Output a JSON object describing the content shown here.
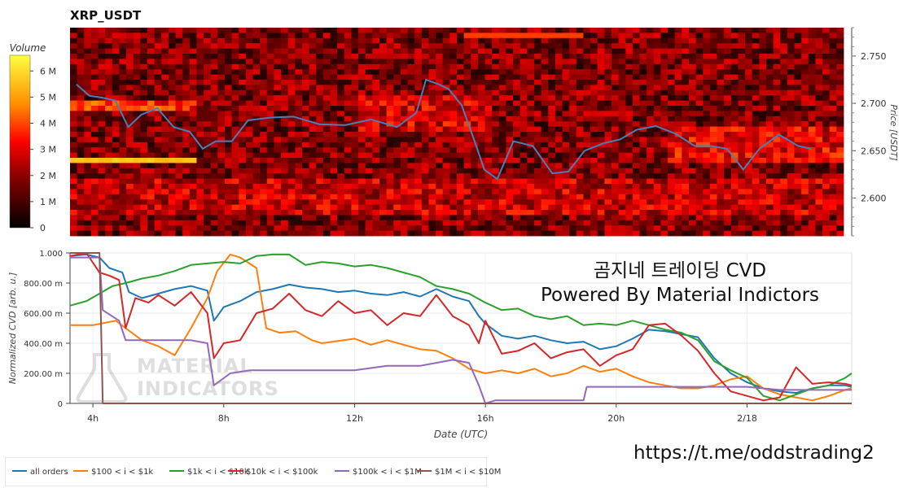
{
  "header": {
    "title": "XRP_USDT"
  },
  "overlay": {
    "line1": "곰지네 트레이딩 CVD",
    "line2": "Powered By Material Indictors",
    "url": "https://t.me/oddstrading2"
  },
  "logo": {
    "line1": "MATERIAL",
    "line2": "INDICATORS"
  },
  "colors": {
    "heat_low": "#000000",
    "heat_mid": "#ff0000",
    "heat_high": "#ffff00",
    "price_line": "#4a7fb5"
  },
  "chart_data": [
    {
      "type": "heatmap",
      "title": "XRP_USDT",
      "ylabel": "Price [USDT]",
      "ylim": [
        2.56,
        2.78
      ],
      "yticks": [
        "2.750",
        "2.700",
        "2.650",
        "2.600"
      ],
      "colorbar": {
        "label": "Volume",
        "ticks": [
          "6 M",
          "5 M",
          "4 M",
          "3 M",
          "2 M",
          "1 M",
          "0"
        ],
        "range": [
          0,
          6.6
        ]
      },
      "price_series": {
        "x": [
          3.5,
          3.9,
          4.3,
          4.7,
          5.1,
          5.5,
          6.0,
          6.5,
          7.0,
          7.4,
          7.8,
          8.3,
          8.8,
          9.5,
          10.2,
          11.0,
          11.8,
          12.6,
          13.4,
          14.0,
          14.3,
          14.7,
          15.0,
          15.4,
          15.8,
          16.1,
          16.5,
          17.0,
          17.6,
          18.2,
          18.7,
          19.2,
          19.8,
          20.3,
          20.8,
          21.4,
          22.0,
          22.6,
          23.1,
          23.6,
          24.1,
          24.6,
          25.2,
          25.8,
          26.2
        ],
        "y": [
          2.72,
          2.708,
          2.706,
          2.703,
          2.675,
          2.688,
          2.695,
          2.675,
          2.67,
          2.652,
          2.66,
          2.66,
          2.682,
          2.685,
          2.686,
          2.678,
          2.677,
          2.683,
          2.675,
          2.69,
          2.725,
          2.72,
          2.715,
          2.698,
          2.66,
          2.63,
          2.62,
          2.66,
          2.655,
          2.626,
          2.628,
          2.65,
          2.658,
          2.662,
          2.672,
          2.676,
          2.668,
          2.655,
          2.655,
          2.652,
          2.63,
          2.652,
          2.667,
          2.655,
          2.652
        ]
      }
    },
    {
      "type": "line",
      "xlabel": "Date (UTC)",
      "ylabel": "Normalized CVD [arb. u.]",
      "ylim": [
        0,
        1
      ],
      "yticks": [
        "1.000",
        "800.00 m",
        "600.00 m",
        "400.00 m",
        "200.00 m",
        "0"
      ],
      "xlim": [
        3.3,
        27.2
      ],
      "xticks": [
        {
          "label": "4h",
          "x": 4
        },
        {
          "label": "8h",
          "x": 8
        },
        {
          "label": "12h",
          "x": 12
        },
        {
          "label": "16h",
          "x": 16
        },
        {
          "label": "20h",
          "x": 20
        },
        {
          "label": "2/18",
          "x": 24
        }
      ],
      "legend_position": "bottom",
      "series": [
        {
          "name": "all orders",
          "color": "#1f77b4",
          "x": [
            3.3,
            3.8,
            4.2,
            4.5,
            4.9,
            5.1,
            5.5,
            6.0,
            6.5,
            7.0,
            7.5,
            7.7,
            8.0,
            8.5,
            9.0,
            9.5,
            10.0,
            10.5,
            11.0,
            11.5,
            12.0,
            12.5,
            13.0,
            13.5,
            14.0,
            14.5,
            15.0,
            15.5,
            15.8,
            16.0,
            16.5,
            17.0,
            17.5,
            18.0,
            18.5,
            19.0,
            19.5,
            20.0,
            20.5,
            21.0,
            21.5,
            22.0,
            22.5,
            23.0,
            23.5,
            24.0,
            24.5,
            25.0,
            25.5,
            26.0,
            26.5,
            27.0,
            27.2
          ],
          "y": [
            0.98,
            0.99,
            0.97,
            0.9,
            0.87,
            0.74,
            0.7,
            0.73,
            0.76,
            0.78,
            0.75,
            0.55,
            0.64,
            0.68,
            0.74,
            0.76,
            0.79,
            0.77,
            0.76,
            0.74,
            0.75,
            0.73,
            0.72,
            0.74,
            0.71,
            0.76,
            0.71,
            0.68,
            0.58,
            0.53,
            0.45,
            0.43,
            0.45,
            0.42,
            0.4,
            0.41,
            0.36,
            0.38,
            0.43,
            0.49,
            0.48,
            0.46,
            0.44,
            0.3,
            0.2,
            0.14,
            0.1,
            0.08,
            0.07,
            0.1,
            0.12,
            0.12,
            0.11
          ]
        },
        {
          "name": "$100 < i < $1k",
          "color": "#ff7f0e",
          "x": [
            3.3,
            4.0,
            4.7,
            5.0,
            5.5,
            6.0,
            6.5,
            7.0,
            7.5,
            7.8,
            8.2,
            8.5,
            9.0,
            9.3,
            9.7,
            10.2,
            10.7,
            11.0,
            12.0,
            12.5,
            13.0,
            13.5,
            14.0,
            14.5,
            15.0,
            15.5,
            16.0,
            16.5,
            17.0,
            17.5,
            18.0,
            18.5,
            19.0,
            19.5,
            20.0,
            20.5,
            21.0,
            21.5,
            22.0,
            22.5,
            23.0,
            23.5,
            24.0,
            24.5,
            25.0,
            25.5,
            26.0,
            26.5,
            27.0,
            27.2
          ],
          "y": [
            0.52,
            0.52,
            0.55,
            0.5,
            0.42,
            0.38,
            0.32,
            0.5,
            0.7,
            0.88,
            0.99,
            0.97,
            0.9,
            0.5,
            0.47,
            0.48,
            0.42,
            0.4,
            0.43,
            0.39,
            0.42,
            0.39,
            0.36,
            0.35,
            0.3,
            0.23,
            0.2,
            0.22,
            0.2,
            0.23,
            0.18,
            0.2,
            0.25,
            0.21,
            0.23,
            0.18,
            0.14,
            0.12,
            0.1,
            0.1,
            0.12,
            0.16,
            0.18,
            0.1,
            0.06,
            0.04,
            0.02,
            0.05,
            0.09,
            0.1
          ]
        },
        {
          "name": "$1k < i < $10k",
          "color": "#2ca02c",
          "x": [
            3.3,
            3.8,
            4.2,
            4.6,
            5.0,
            5.5,
            6.0,
            6.5,
            7.0,
            7.5,
            8.0,
            8.5,
            9.0,
            9.5,
            10.0,
            10.5,
            11.0,
            11.5,
            12.0,
            12.5,
            13.0,
            13.5,
            14.0,
            14.5,
            15.0,
            15.5,
            16.0,
            16.5,
            17.0,
            17.5,
            18.0,
            18.5,
            19.0,
            19.5,
            20.0,
            20.5,
            21.0,
            21.5,
            22.0,
            22.5,
            23.0,
            23.5,
            24.0,
            24.5,
            25.0,
            25.5,
            26.0,
            26.5,
            27.0,
            27.2
          ],
          "y": [
            0.65,
            0.68,
            0.73,
            0.78,
            0.8,
            0.83,
            0.85,
            0.88,
            0.92,
            0.93,
            0.94,
            0.93,
            0.98,
            0.99,
            0.99,
            0.92,
            0.94,
            0.93,
            0.91,
            0.92,
            0.9,
            0.87,
            0.84,
            0.78,
            0.76,
            0.73,
            0.67,
            0.62,
            0.63,
            0.58,
            0.56,
            0.58,
            0.52,
            0.53,
            0.52,
            0.55,
            0.52,
            0.49,
            0.47,
            0.42,
            0.28,
            0.22,
            0.17,
            0.05,
            0.02,
            0.06,
            0.1,
            0.12,
            0.17,
            0.2
          ]
        },
        {
          "name": "$10k < i < $100k",
          "color": "#d62728",
          "x": [
            3.3,
            3.8,
            4.2,
            4.5,
            4.8,
            5.0,
            5.3,
            5.7,
            6.0,
            6.5,
            7.0,
            7.5,
            7.7,
            8.0,
            8.5,
            9.0,
            9.5,
            10.0,
            10.5,
            11.0,
            11.5,
            12.0,
            12.5,
            13.0,
            13.5,
            14.0,
            14.5,
            15.0,
            15.5,
            15.8,
            16.0,
            16.5,
            17.0,
            17.5,
            18.0,
            18.5,
            19.0,
            19.5,
            20.0,
            20.5,
            21.0,
            21.5,
            22.0,
            22.5,
            23.0,
            23.5,
            24.0,
            24.5,
            25.0,
            25.5,
            26.0,
            26.5,
            27.0,
            27.2
          ],
          "y": [
            0.98,
            1.0,
            0.87,
            0.85,
            0.82,
            0.5,
            0.7,
            0.67,
            0.72,
            0.65,
            0.74,
            0.6,
            0.3,
            0.4,
            0.42,
            0.6,
            0.63,
            0.73,
            0.62,
            0.58,
            0.68,
            0.6,
            0.62,
            0.52,
            0.6,
            0.58,
            0.72,
            0.58,
            0.52,
            0.4,
            0.55,
            0.33,
            0.35,
            0.4,
            0.3,
            0.34,
            0.36,
            0.25,
            0.32,
            0.36,
            0.52,
            0.53,
            0.45,
            0.35,
            0.2,
            0.08,
            0.05,
            0.02,
            0.04,
            0.24,
            0.13,
            0.14,
            0.13,
            0.12
          ]
        },
        {
          "name": "$100k < i < $1M",
          "color": "#9467bd",
          "x": [
            3.3,
            4.2,
            4.3,
            4.8,
            5.0,
            6.0,
            7.0,
            7.5,
            7.7,
            8.2,
            8.8,
            9.5,
            10.5,
            11.5,
            12.0,
            13.0,
            14.0,
            14.5,
            15.0,
            15.5,
            15.8,
            16.0,
            16.3,
            17.0,
            18.0,
            19.0,
            19.1,
            20.0,
            21.0,
            22.0,
            23.0,
            24.0,
            25.0,
            26.0,
            27.0,
            27.2
          ],
          "y": [
            0.97,
            0.97,
            0.62,
            0.55,
            0.42,
            0.42,
            0.42,
            0.4,
            0.12,
            0.2,
            0.22,
            0.22,
            0.22,
            0.22,
            0.22,
            0.25,
            0.25,
            0.27,
            0.29,
            0.27,
            0.12,
            0.0,
            0.02,
            0.02,
            0.02,
            0.02,
            0.11,
            0.11,
            0.11,
            0.11,
            0.11,
            0.11,
            0.09,
            0.09,
            0.09,
            0.09
          ]
        },
        {
          "name": "$1M < i < $10M",
          "color": "#8c564b",
          "x": [
            3.3,
            4.2,
            4.3,
            4.33,
            27.2
          ],
          "y": [
            1.0,
            1.0,
            0.0,
            0.0,
            0.0
          ]
        }
      ]
    }
  ]
}
